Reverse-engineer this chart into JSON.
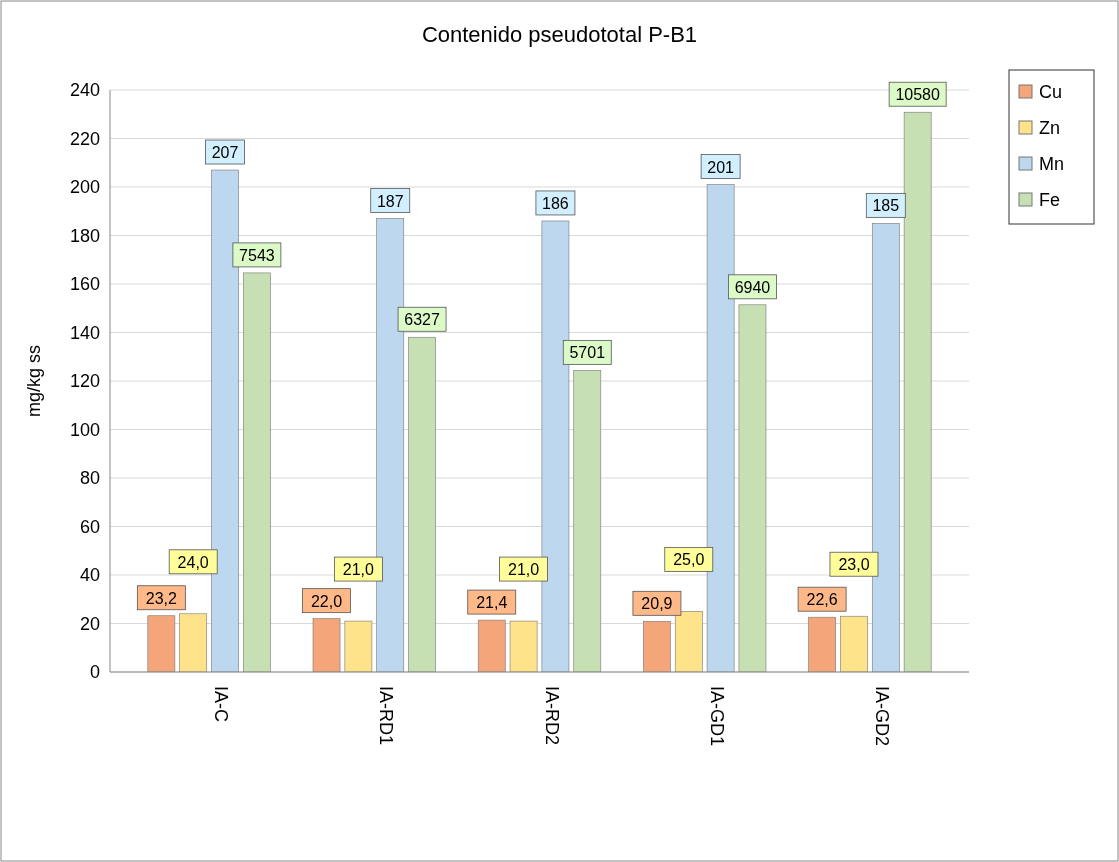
{
  "chart_data": {
    "type": "bar",
    "title": "Contenido pseudototal P-B1",
    "ylabel": "mg/kg ss",
    "categories": [
      "IA-C",
      "IA-RD1",
      "IA-RD2",
      "IA-GD1",
      "IA-GD2"
    ],
    "series": [
      {
        "name": "Cu",
        "color": "#f4a57a",
        "values": [
          23.2,
          22.0,
          21.4,
          20.9,
          22.6
        ],
        "value_labels": [
          "23,2",
          "22,0",
          "21,4",
          "20,9",
          "22,6"
        ]
      },
      {
        "name": "Zn",
        "color": "#ffe38a",
        "values": [
          24.0,
          21.0,
          21.0,
          25.0,
          23.0
        ],
        "value_labels": [
          "24,0",
          "21,0",
          "21,0",
          "25,0",
          "23,0"
        ]
      },
      {
        "name": "Mn",
        "color": "#bdd7ee",
        "values": [
          207,
          187,
          186,
          201,
          185
        ],
        "value_labels": [
          "207",
          "187",
          "186",
          "201",
          "185"
        ]
      },
      {
        "name": "Fe",
        "color": "#c6e0b4",
        "axis": "y2",
        "values": [
          7543,
          6327,
          5701,
          6940,
          10580
        ],
        "value_labels": [
          "7543",
          "6327",
          "5701",
          "6940",
          "10580"
        ]
      }
    ],
    "ylim": [
      0,
      240
    ],
    "yticks": [
      0,
      20,
      40,
      60,
      80,
      100,
      120,
      140,
      160,
      180,
      200,
      220,
      240
    ],
    "y2lim": [
      0,
      11000
    ],
    "tick_labels": "xy",
    "grid": "y",
    "legend": "top right"
  }
}
